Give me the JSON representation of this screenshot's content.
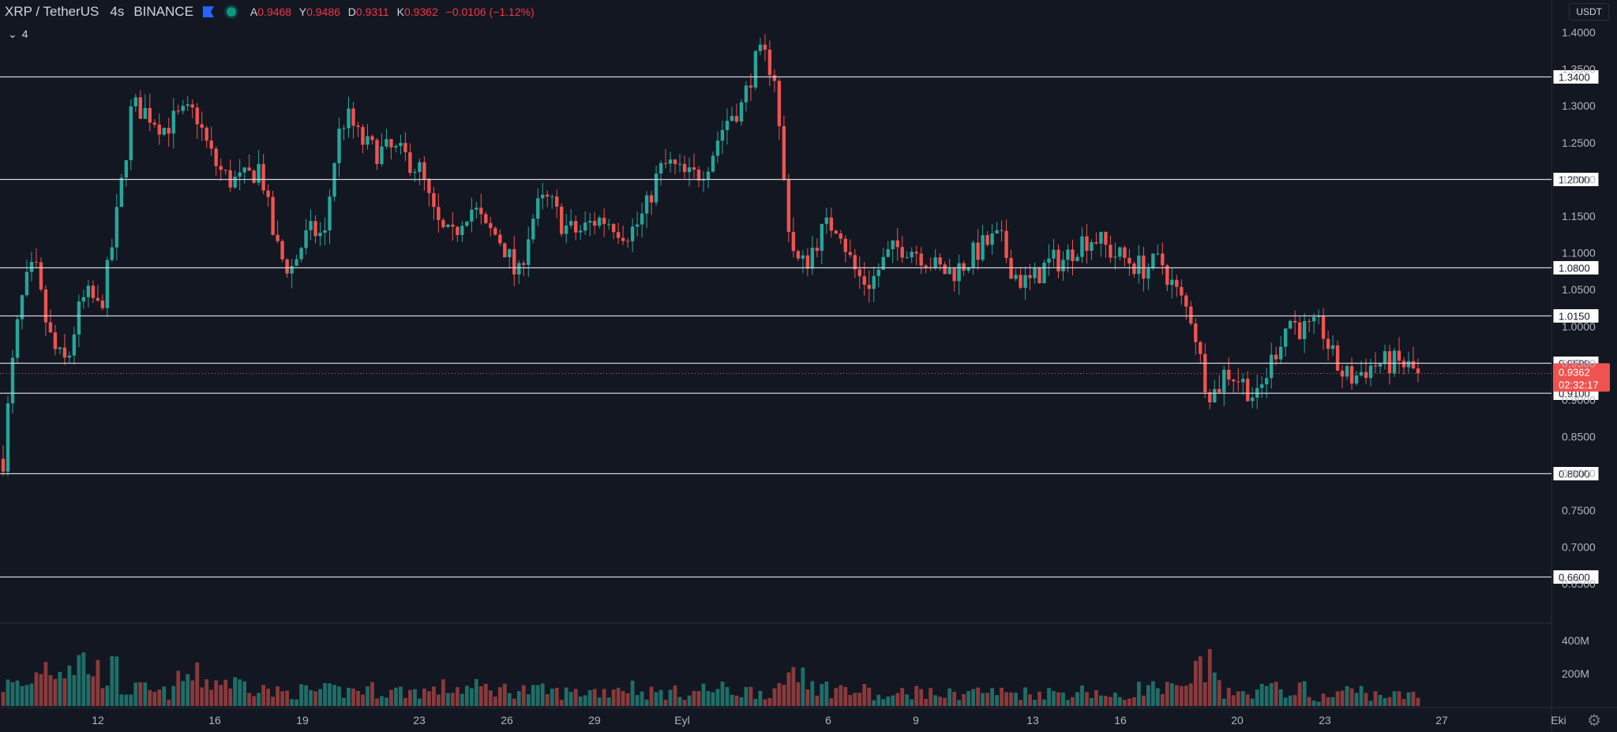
{
  "legend": {
    "symbol": "XRP / TetherUS",
    "interval": "4s",
    "exchange": "BINANCE",
    "o_label": "A",
    "o": "0.9468",
    "h_label": "Y",
    "h": "0.9486",
    "l_label": "D",
    "l": "0.9311",
    "c_label": "K",
    "c": "0.9362",
    "change": "−0.0106 (−1.12%)",
    "collapse_label": "4"
  },
  "currency": "USDT",
  "colors": {
    "up": "#26a69a",
    "down": "#ef5350",
    "background": "#131722",
    "grid": "#1c2030",
    "level_line": "#d1d4dc"
  },
  "chart_data": {
    "type": "candlestick",
    "price_ticks": [
      "1.4000",
      "1.3500",
      "1.3000",
      "1.2500",
      "1.2000",
      "1.1500",
      "1.1000",
      "1.0500",
      "1.0000",
      "0.9500",
      "0.9000",
      "0.8500",
      "0.8000",
      "0.7500",
      "0.7000",
      "0.6500"
    ],
    "y_range": [
      0.62,
      1.42
    ],
    "x_ticks": [
      {
        "label": "12",
        "day": 2
      },
      {
        "label": "16",
        "day": 6
      },
      {
        "label": "19",
        "day": 9
      },
      {
        "label": "23",
        "day": 13
      },
      {
        "label": "26",
        "day": 16
      },
      {
        "label": "29",
        "day": 19
      },
      {
        "label": "Eyl",
        "day": 22
      },
      {
        "label": "6",
        "day": 27
      },
      {
        "label": "9",
        "day": 30
      },
      {
        "label": "13",
        "day": 34
      },
      {
        "label": "16",
        "day": 37
      },
      {
        "label": "20",
        "day": 41
      },
      {
        "label": "23",
        "day": 44
      },
      {
        "label": "27",
        "day": 48
      },
      {
        "label": "Eki",
        "day": 52
      }
    ],
    "horizontal_levels": [
      "1.3400",
      "1.2000",
      "1.0800",
      "1.0150",
      "0.9500",
      "0.9100",
      "0.8000",
      "0.6600"
    ],
    "last_price": {
      "value": "0.9362",
      "countdown": "02:32:17"
    },
    "volume_ticks": [
      "400M",
      "200M"
    ],
    "ohlc_path": [
      [
        0.82,
        0.95
      ],
      [
        1.08,
        1.01
      ],
      [
        0.95,
        1.05
      ],
      [
        1.02,
        0.98
      ],
      [
        1.3,
        1.31
      ],
      [
        1.27,
        1.28
      ],
      [
        1.29,
        1.26
      ],
      [
        1.2,
        1.18
      ],
      [
        1.22,
        1.14
      ],
      [
        1.08,
        1.13
      ],
      [
        1.12,
        1.28
      ],
      [
        1.26,
        1.24
      ],
      [
        1.24,
        1.25
      ],
      [
        1.21,
        1.16
      ],
      [
        1.12,
        1.19
      ],
      [
        1.13,
        1.17
      ],
      [
        1.06,
        1.13
      ],
      [
        1.17,
        1.14
      ],
      [
        1.13,
        1.15
      ],
      [
        1.14,
        1.1
      ],
      [
        1.16,
        1.22
      ],
      [
        1.21,
        1.18
      ],
      [
        1.23,
        1.26
      ],
      [
        1.3,
        1.39
      ],
      [
        1.34,
        1.15
      ],
      [
        1.09,
        1.12
      ],
      [
        1.14,
        1.09
      ],
      [
        1.06,
        1.08
      ],
      [
        1.11,
        1.12
      ],
      [
        1.08,
        1.06
      ],
      [
        1.09,
        1.1
      ],
      [
        1.12,
        1.08
      ],
      [
        1.06,
        1.08
      ],
      [
        1.09,
        1.11
      ],
      [
        1.12,
        1.11
      ],
      [
        1.09,
        1.07
      ],
      [
        1.09,
        1.08
      ],
      [
        1.01,
        0.89
      ],
      [
        0.94,
        0.95
      ],
      [
        0.9,
        0.91
      ],
      [
        1.01,
        0.99
      ],
      [
        1.0,
        0.96
      ],
      [
        0.93,
        0.94
      ],
      [
        0.95,
        0.96
      ],
      [
        0.9362,
        0.9362
      ]
    ],
    "volume_profile_M": [
      140,
      280,
      300,
      230,
      110,
      90,
      190,
      170,
      150,
      90,
      100,
      100,
      110,
      100,
      100,
      120,
      120,
      110,
      100,
      90,
      100,
      130,
      90,
      90,
      110,
      100,
      100,
      250,
      120,
      100,
      60,
      100,
      80,
      100,
      90,
      90,
      90,
      100,
      60,
      120,
      110,
      250,
      80,
      110,
      110,
      60,
      100,
      80,
      70
    ]
  }
}
